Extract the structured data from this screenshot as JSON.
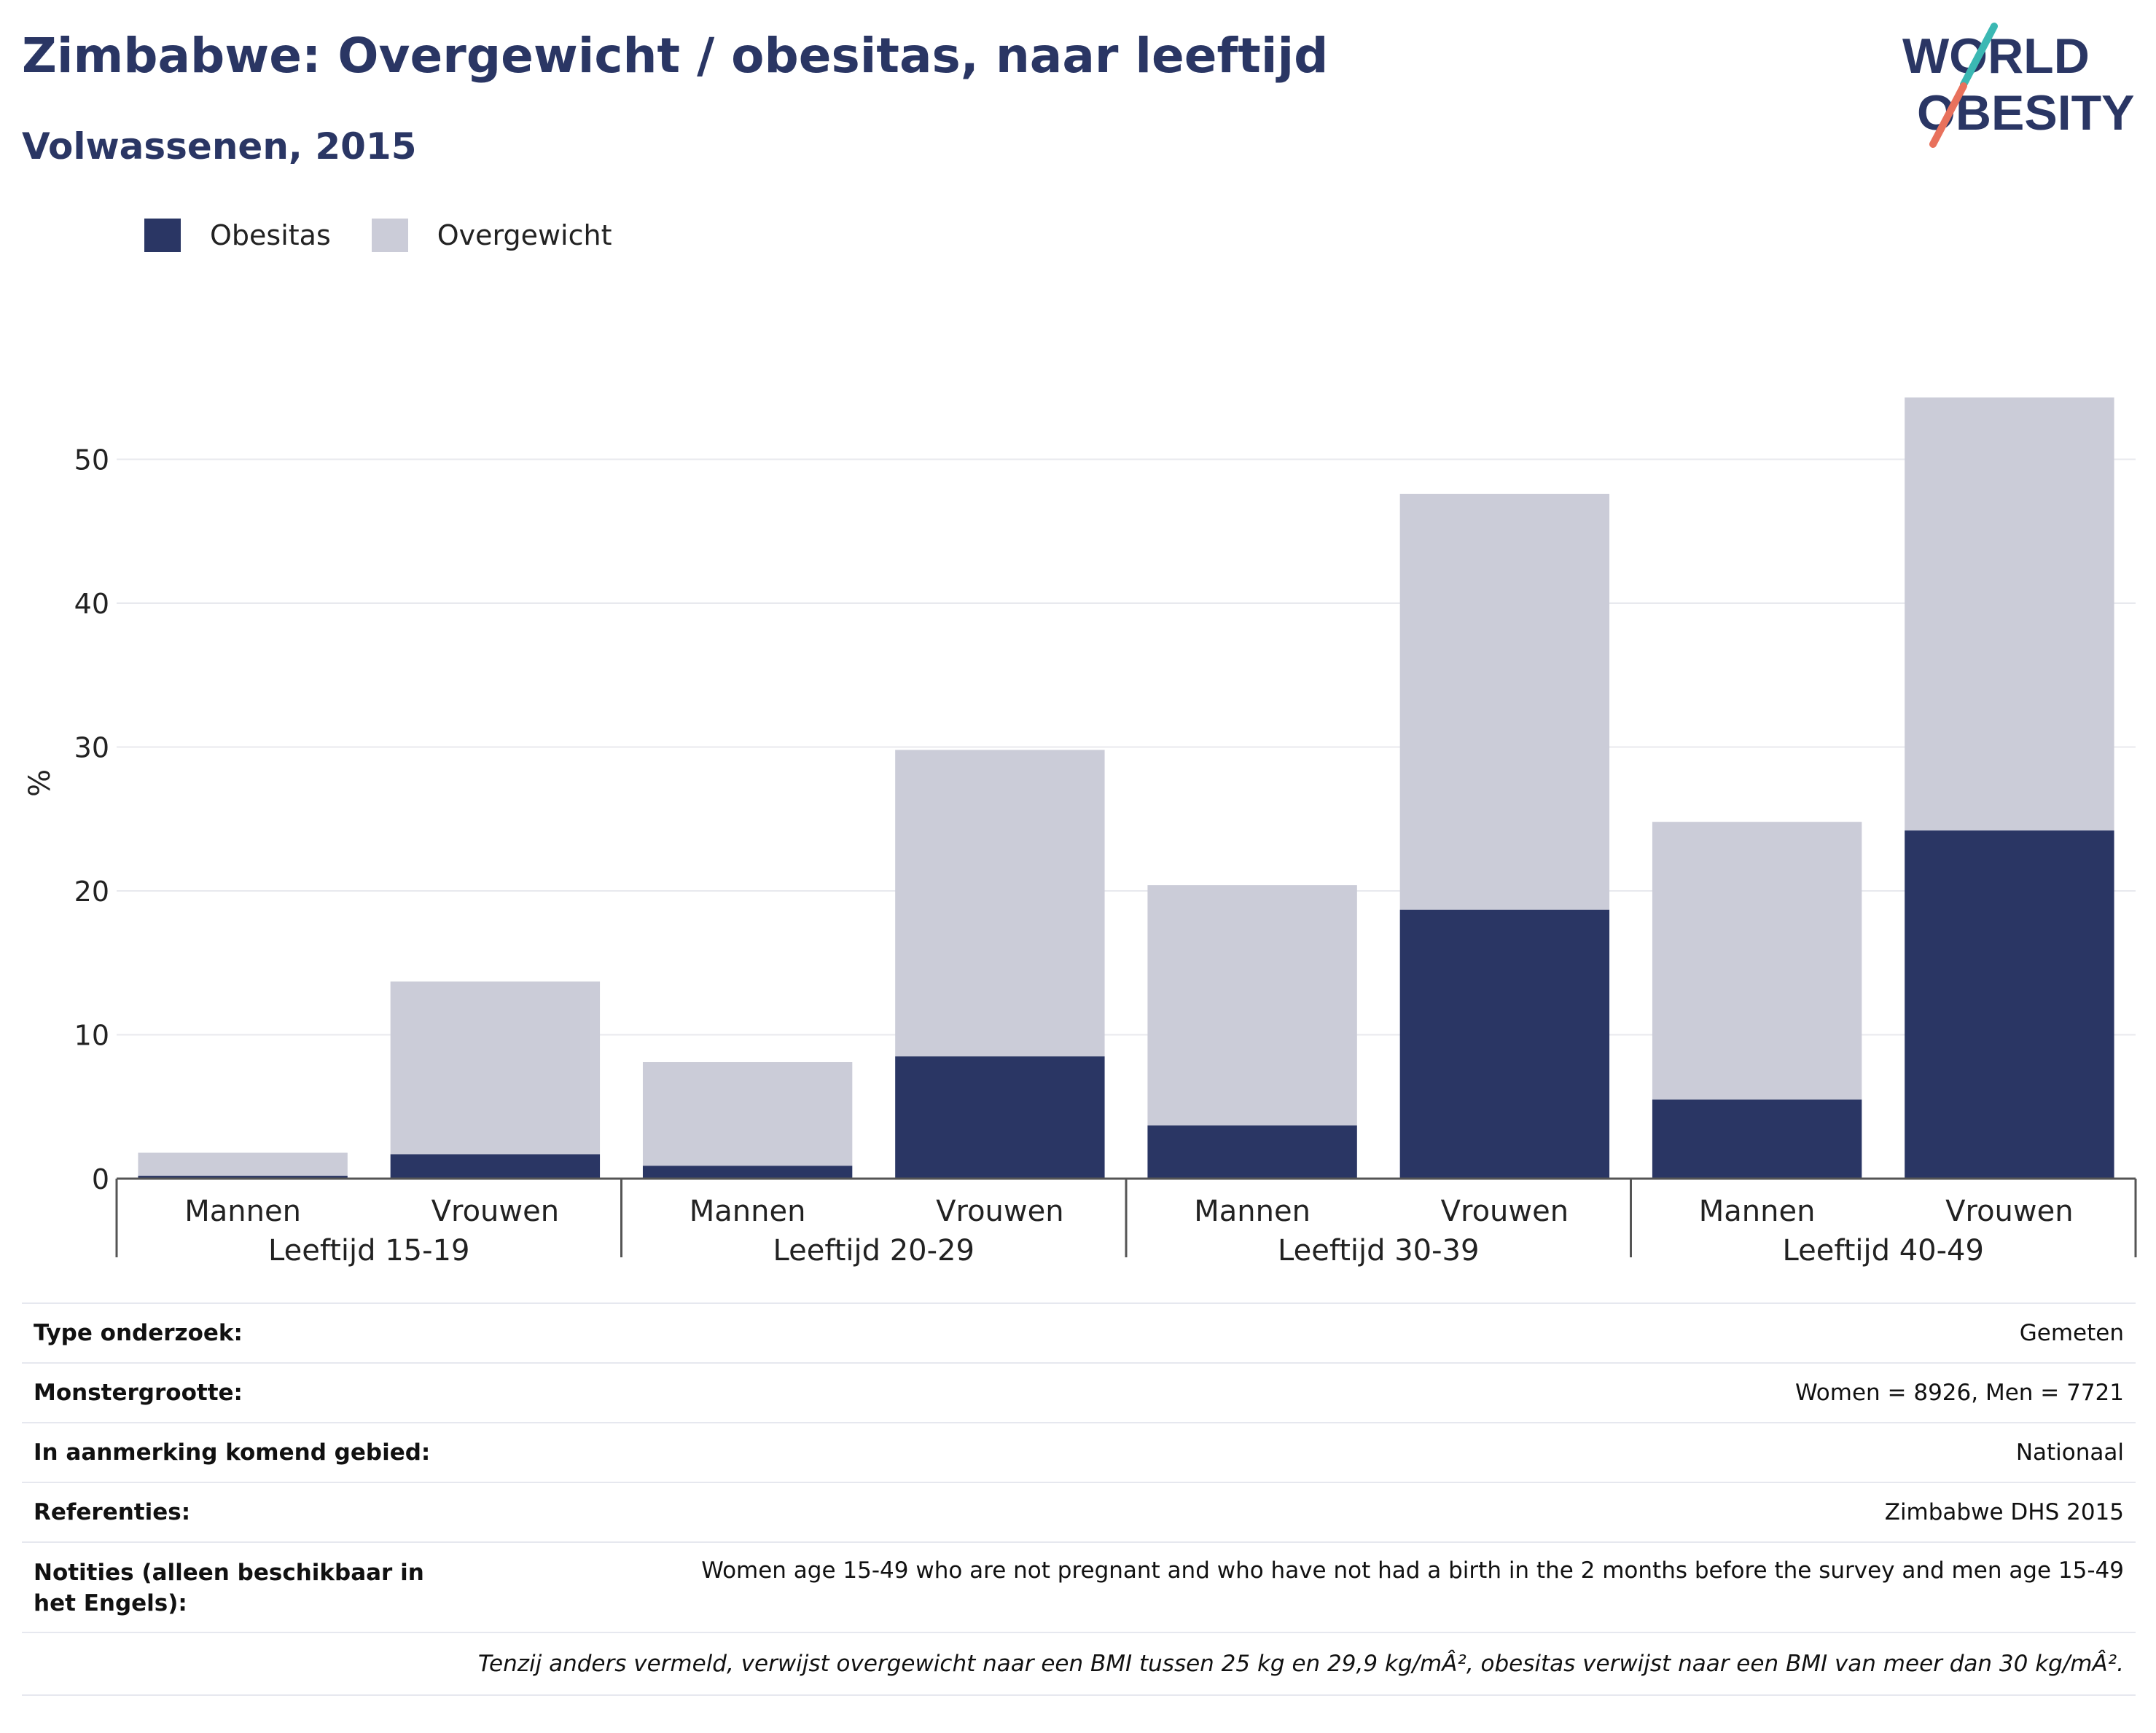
{
  "header": {
    "title": "Zimbabwe: Overgewicht / obesitas, naar leeftijd",
    "subtitle": "Volwassenen, 2015"
  },
  "logo": {
    "line1": "WORLD",
    "line2": "OBESITY"
  },
  "colors": {
    "obesitas": "#2a3664",
    "overgewicht": "#cbccd8",
    "title": "#2a3664",
    "logo_teal": "#3bb8b3",
    "logo_coral": "#e8715c"
  },
  "chart_data": {
    "type": "bar",
    "stacked": true,
    "ylabel": "%",
    "ylim": [
      0,
      55
    ],
    "yticks": [
      0,
      10,
      20,
      30,
      40,
      50
    ],
    "grid": true,
    "legend_position": "top-left",
    "groups": [
      "Leeftijd 15-19",
      "Leeftijd 20-29",
      "Leeftijd 30-39",
      "Leeftijd 40-49"
    ],
    "categories": [
      "Mannen",
      "Vrouwen",
      "Mannen",
      "Vrouwen",
      "Mannen",
      "Vrouwen",
      "Mannen",
      "Vrouwen"
    ],
    "series": [
      {
        "name": "Obesitas",
        "values": [
          0.2,
          1.7,
          0.9,
          8.5,
          3.7,
          18.7,
          5.5,
          24.2
        ]
      },
      {
        "name": "Overgewicht",
        "values": [
          1.6,
          12.0,
          7.2,
          21.3,
          16.7,
          28.9,
          19.3,
          30.1
        ]
      }
    ]
  },
  "info": {
    "rows": [
      {
        "label": "Type onderzoek:",
        "value": "Gemeten"
      },
      {
        "label": "Monstergrootte:",
        "value": "Women = 8926, Men = 7721"
      },
      {
        "label": "In aanmerking komend gebied:",
        "value": "Nationaal"
      },
      {
        "label": "Referenties:",
        "value": "Zimbabwe DHS 2015"
      },
      {
        "label": "Notities (alleen beschikbaar in het Engels):",
        "value": "Women age 15-49 who are not pregnant and who have not had a birth in the 2 months before the survey and men age 15-49"
      }
    ],
    "note": "Tenzij anders vermeld, verwijst overgewicht naar een BMI tussen 25 kg en 29,9 kg/mÂ², obesitas verwijst naar een BMI van meer dan 30 kg/mÂ²."
  }
}
